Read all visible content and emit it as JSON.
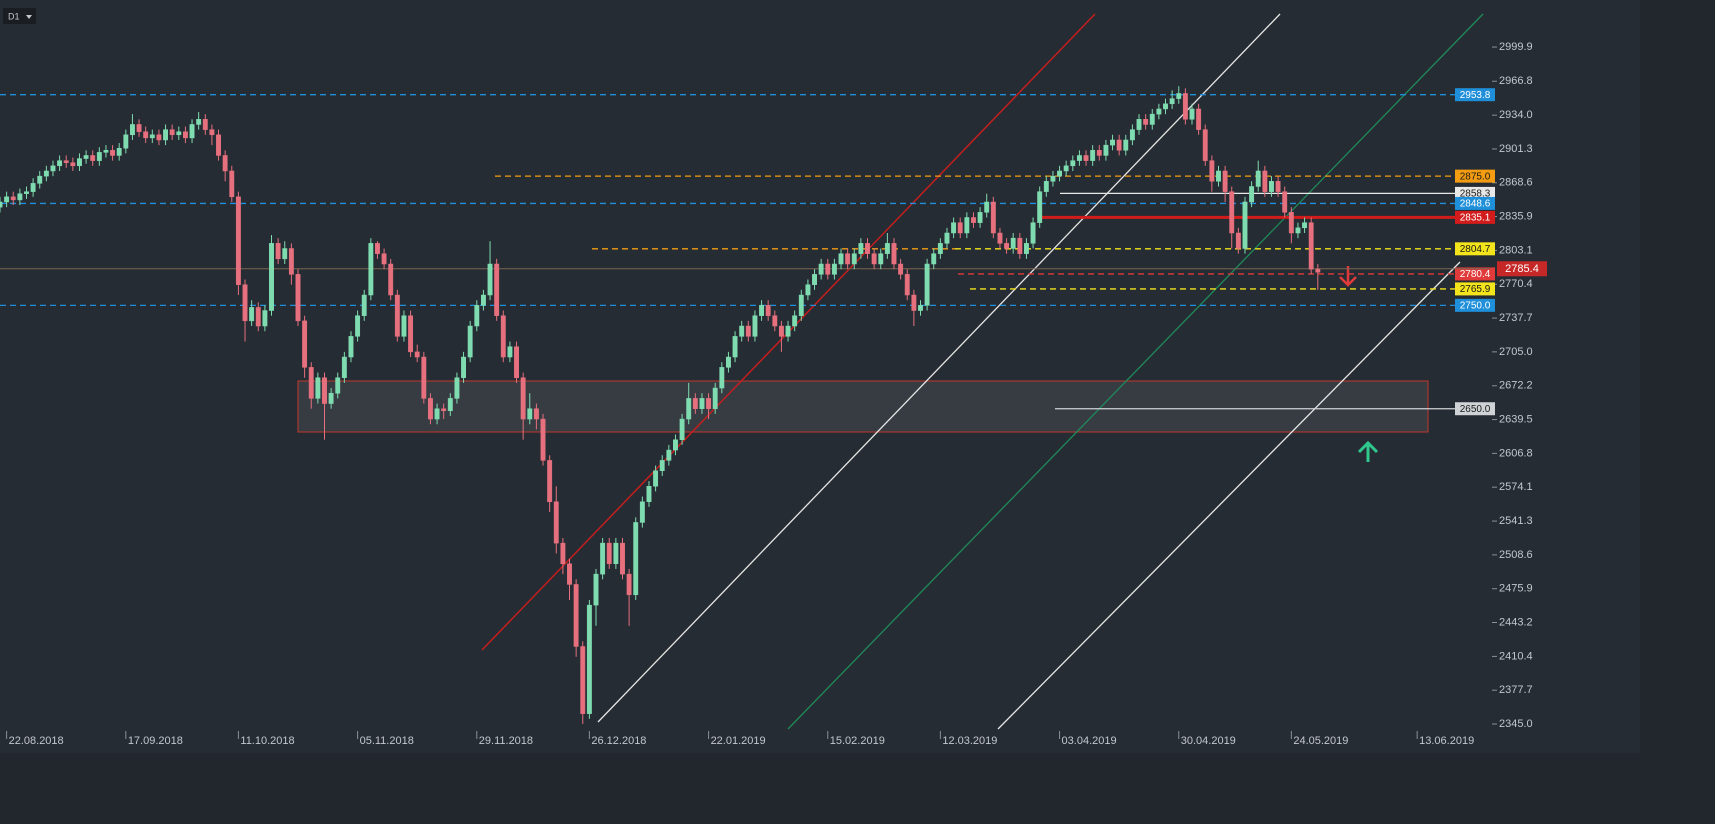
{
  "chart_data": {
    "type": "candlestick",
    "timeframe": "D1",
    "up_color": "#7fdcb0",
    "down_color": "#e6707e",
    "xlim": [
      0,
      225
    ],
    "ylim": [
      2339.2,
      3045.4
    ],
    "xticks": [
      {
        "value": 1,
        "label": "22.08.2018"
      },
      {
        "value": 19,
        "label": "17.09.2018"
      },
      {
        "value": 36,
        "label": "11.10.2018"
      },
      {
        "value": 54,
        "label": "05.11.2018"
      },
      {
        "value": 72,
        "label": "29.11.2018"
      },
      {
        "value": 89,
        "label": "26.12.2018"
      },
      {
        "value": 107,
        "label": "22.01.2019"
      },
      {
        "value": 125,
        "label": "15.02.2019"
      },
      {
        "value": 142,
        "label": "12.03.2019"
      },
      {
        "value": 160,
        "label": "03.04.2019"
      },
      {
        "value": 178,
        "label": "30.04.2019"
      },
      {
        "value": 195,
        "label": "24.05.2019"
      },
      {
        "value": 214,
        "label": "13.06.2019"
      }
    ],
    "yticks": [
      2999.9,
      2966.8,
      {
        "value": 2934,
        "label": "2934.0"
      },
      2901.3,
      2868.6,
      2835.9,
      2803.1,
      2770.4,
      2737.7,
      {
        "value": 2705,
        "label": "2705.0"
      },
      2672.2,
      2639.5,
      2606.8,
      2574.1,
      2541.3,
      2508.6,
      2475.9,
      2443.2,
      2410.4,
      2377.7,
      {
        "value": 2345,
        "label": "2345.0"
      }
    ],
    "levels": [
      {
        "value": 2953.8,
        "color": "#1e8fd8",
        "text_color": "#ffffff",
        "style": "dashed"
      },
      {
        "value": {
          "value": 2875,
          "label": "2875.0"
        },
        "color": "#f39c12",
        "text_color": "#1a1a1a",
        "style": "dashed"
      },
      {
        "value": 2858.3,
        "color": "#e8e8e8",
        "text_color": "#1a1a1a",
        "style": "solid"
      },
      {
        "value": 2848.6,
        "color": "#1e8fd8",
        "text_color": "#ffffff",
        "style": "dashed"
      },
      {
        "value": 2835.1,
        "color": "#d21c1c",
        "text_color": "#ffffff",
        "style": "thick"
      },
      {
        "value": 2804.7,
        "color": "#f4e41c",
        "text_color": "#1a1a1a",
        "style": "dashed"
      },
      {
        "value": 2780.4,
        "color": "#e03a3a",
        "text_color": "#ffffff",
        "style": "dashed"
      },
      {
        "value": 2765.9,
        "color": "#f4e41c",
        "text_color": "#1a1a1a",
        "style": "dashed"
      },
      {
        "value": {
          "value": 2750,
          "label": "2750.0"
        },
        "color": "#1e8fd8",
        "text_color": "#ffffff",
        "style": "dashed"
      },
      {
        "value": {
          "value": 2650,
          "label": "2650.0"
        },
        "color": "#cfd3d6",
        "text_color": "#1a1a1a",
        "style": "solid"
      }
    ],
    "current_price": {
      "value": 2785.4,
      "color": "#c62828",
      "line_color": "#7a6550"
    },
    "open": [
      2845,
      2850,
      2855,
      2852,
      2858,
      2860,
      2868,
      2875,
      2880,
      2885,
      2890,
      2888,
      2885,
      2892,
      2895,
      2890,
      2898,
      2900,
      2895,
      2902,
      2915,
      2925,
      2918,
      2912,
      2915,
      2910,
      2920,
      2915,
      2918,
      2912,
      2925,
      2930,
      2920,
      2915,
      2895,
      2880,
      2855,
      2770,
      2735,
      2748,
      2730,
      2745,
      2810,
      2795,
      2805,
      2780,
      2735,
      2690,
      2660,
      2680,
      2655,
      2665,
      2680,
      2700,
      2720,
      2740,
      2760,
      2810,
      2800,
      2790,
      2760,
      2720,
      2740,
      2705,
      2700,
      2660,
      2640,
      2650,
      2648,
      2660,
      2680,
      2700,
      2730,
      2750,
      2760,
      2790,
      2740,
      2700,
      2710,
      2680,
      2640,
      2650,
      2640,
      2600,
      2560,
      2520,
      2500,
      2480,
      2420,
      2355,
      2460,
      2490,
      2520,
      2500,
      2520,
      2490,
      2470,
      2540,
      2560,
      2575,
      2590,
      2600,
      2610,
      2620,
      2640,
      2660,
      2650,
      2660,
      2650,
      2670,
      2690,
      2700,
      2720,
      2730,
      2720,
      2740,
      2750,
      2740,
      2730,
      2720,
      2730,
      2740,
      2760,
      2770,
      2780,
      2790,
      2780,
      2790,
      2800,
      2790,
      2800,
      2810,
      2800,
      2790,
      2800,
      2810,
      2790,
      2780,
      2760,
      2745,
      2750,
      2790,
      2800,
      2810,
      2820,
      2830,
      2820,
      2835,
      2830,
      2840,
      2850,
      2820,
      2810,
      2805,
      2815,
      2800,
      2810,
      2830,
      2860,
      2870,
      2875,
      2880,
      2885,
      2890,
      2895,
      2890,
      2900,
      2895,
      2905,
      2910,
      2900,
      2910,
      2920,
      2930,
      2925,
      2935,
      2940,
      2945,
      2950,
      2955,
      2930,
      2940,
      2920,
      2890,
      2870,
      2880,
      2860,
      2820,
      2805,
      2850,
      2865,
      2880,
      2860,
      2870,
      2860,
      2840,
      2820,
      2825,
      2830,
      2785
    ],
    "high": [
      2855,
      2860,
      2860,
      2863,
      2865,
      2873,
      2880,
      2885,
      2890,
      2895,
      2895,
      2893,
      2897,
      2900,
      2900,
      2903,
      2905,
      2905,
      2907,
      2920,
      2935,
      2930,
      2923,
      2920,
      2920,
      2925,
      2925,
      2923,
      2923,
      2930,
      2937,
      2935,
      2925,
      2920,
      2900,
      2885,
      2860,
      2775,
      2755,
      2753,
      2750,
      2818,
      2815,
      2812,
      2810,
      2785,
      2740,
      2695,
      2685,
      2685,
      2670,
      2685,
      2705,
      2725,
      2745,
      2765,
      2815,
      2812,
      2805,
      2795,
      2765,
      2745,
      2745,
      2712,
      2705,
      2665,
      2655,
      2655,
      2665,
      2685,
      2705,
      2735,
      2755,
      2765,
      2812,
      2795,
      2745,
      2715,
      2715,
      2685,
      2665,
      2655,
      2645,
      2605,
      2575,
      2525,
      2505,
      2485,
      2425,
      2465,
      2495,
      2525,
      2525,
      2525,
      2525,
      2495,
      2545,
      2565,
      2580,
      2595,
      2605,
      2615,
      2625,
      2645,
      2675,
      2665,
      2665,
      2665,
      2675,
      2695,
      2705,
      2725,
      2735,
      2735,
      2745,
      2755,
      2755,
      2745,
      2735,
      2735,
      2745,
      2765,
      2775,
      2785,
      2795,
      2795,
      2795,
      2805,
      2805,
      2805,
      2815,
      2815,
      2805,
      2805,
      2820,
      2815,
      2795,
      2785,
      2765,
      2755,
      2795,
      2805,
      2815,
      2825,
      2835,
      2835,
      2840,
      2840,
      2845,
      2858,
      2855,
      2825,
      2815,
      2820,
      2820,
      2815,
      2835,
      2865,
      2875,
      2880,
      2885,
      2890,
      2895,
      2900,
      2900,
      2905,
      2905,
      2910,
      2915,
      2915,
      2915,
      2925,
      2935,
      2935,
      2940,
      2945,
      2950,
      2958,
      2962,
      2960,
      2945,
      2945,
      2925,
      2895,
      2885,
      2885,
      2865,
      2825,
      2855,
      2870,
      2890,
      2885,
      2875,
      2875,
      2865,
      2845,
      2830,
      2835,
      2835,
      2790
    ],
    "low": [
      2840,
      2845,
      2847,
      2847,
      2853,
      2855,
      2863,
      2870,
      2875,
      2880,
      2883,
      2880,
      2880,
      2887,
      2885,
      2885,
      2893,
      2890,
      2890,
      2897,
      2910,
      2913,
      2907,
      2907,
      2905,
      2905,
      2910,
      2910,
      2907,
      2907,
      2920,
      2915,
      2905,
      2890,
      2870,
      2850,
      2760,
      2715,
      2730,
      2725,
      2725,
      2740,
      2790,
      2790,
      2770,
      2730,
      2680,
      2650,
      2655,
      2620,
      2650,
      2660,
      2675,
      2695,
      2715,
      2735,
      2755,
      2795,
      2785,
      2755,
      2715,
      2715,
      2700,
      2695,
      2655,
      2635,
      2635,
      2640,
      2643,
      2655,
      2675,
      2695,
      2725,
      2745,
      2755,
      2735,
      2695,
      2695,
      2675,
      2620,
      2635,
      2630,
      2595,
      2550,
      2510,
      2490,
      2465,
      2410,
      2345,
      2350,
      2440,
      2485,
      2495,
      2495,
      2485,
      2440,
      2465,
      2535,
      2555,
      2570,
      2585,
      2595,
      2605,
      2615,
      2635,
      2645,
      2645,
      2640,
      2645,
      2665,
      2685,
      2695,
      2715,
      2715,
      2715,
      2735,
      2735,
      2725,
      2705,
      2715,
      2725,
      2735,
      2755,
      2765,
      2775,
      2775,
      2775,
      2785,
      2785,
      2785,
      2795,
      2795,
      2785,
      2785,
      2795,
      2785,
      2775,
      2755,
      2730,
      2740,
      2745,
      2785,
      2795,
      2805,
      2815,
      2815,
      2815,
      2825,
      2825,
      2835,
      2815,
      2805,
      2800,
      2800,
      2795,
      2795,
      2805,
      2825,
      2855,
      2865,
      2870,
      2875,
      2880,
      2885,
      2885,
      2885,
      2890,
      2890,
      2900,
      2895,
      2895,
      2905,
      2915,
      2920,
      2920,
      2930,
      2935,
      2940,
      2945,
      2925,
      2925,
      2915,
      2885,
      2860,
      2865,
      2850,
      2805,
      2800,
      2800,
      2845,
      2860,
      2855,
      2855,
      2855,
      2835,
      2810,
      2815,
      2820,
      2780,
      2765
    ],
    "close": [
      2850,
      2855,
      2852,
      2858,
      2860,
      2868,
      2875,
      2880,
      2885,
      2890,
      2888,
      2885,
      2892,
      2895,
      2890,
      2898,
      2900,
      2895,
      2902,
      2915,
      2925,
      2918,
      2912,
      2915,
      2910,
      2920,
      2915,
      2918,
      2912,
      2925,
      2930,
      2920,
      2915,
      2895,
      2880,
      2855,
      2770,
      2735,
      2748,
      2730,
      2745,
      2810,
      2795,
      2805,
      2780,
      2735,
      2690,
      2660,
      2680,
      2655,
      2665,
      2680,
      2700,
      2720,
      2740,
      2760,
      2810,
      2800,
      2790,
      2760,
      2720,
      2740,
      2705,
      2700,
      2660,
      2640,
      2650,
      2648,
      2660,
      2680,
      2700,
      2730,
      2750,
      2760,
      2790,
      2740,
      2700,
      2710,
      2680,
      2640,
      2650,
      2640,
      2600,
      2560,
      2520,
      2500,
      2480,
      2420,
      2355,
      2460,
      2490,
      2520,
      2500,
      2520,
      2490,
      2470,
      2540,
      2560,
      2575,
      2590,
      2600,
      2610,
      2620,
      2640,
      2660,
      2650,
      2660,
      2650,
      2670,
      2690,
      2700,
      2720,
      2730,
      2720,
      2740,
      2750,
      2740,
      2730,
      2720,
      2730,
      2740,
      2760,
      2770,
      2780,
      2790,
      2780,
      2790,
      2800,
      2790,
      2800,
      2810,
      2800,
      2790,
      2800,
      2810,
      2790,
      2780,
      2760,
      2745,
      2750,
      2790,
      2800,
      2810,
      2820,
      2830,
      2820,
      2835,
      2830,
      2840,
      2850,
      2820,
      2810,
      2805,
      2815,
      2800,
      2810,
      2830,
      2860,
      2870,
      2875,
      2880,
      2885,
      2890,
      2895,
      2890,
      2900,
      2895,
      2905,
      2910,
      2900,
      2910,
      2920,
      2930,
      2925,
      2935,
      2940,
      2945,
      2950,
      2955,
      2930,
      2940,
      2920,
      2890,
      2870,
      2880,
      2860,
      2820,
      2805,
      2850,
      2865,
      2880,
      2860,
      2870,
      2860,
      2840,
      2820,
      2825,
      2830,
      2785,
      2782
    ]
  }
}
